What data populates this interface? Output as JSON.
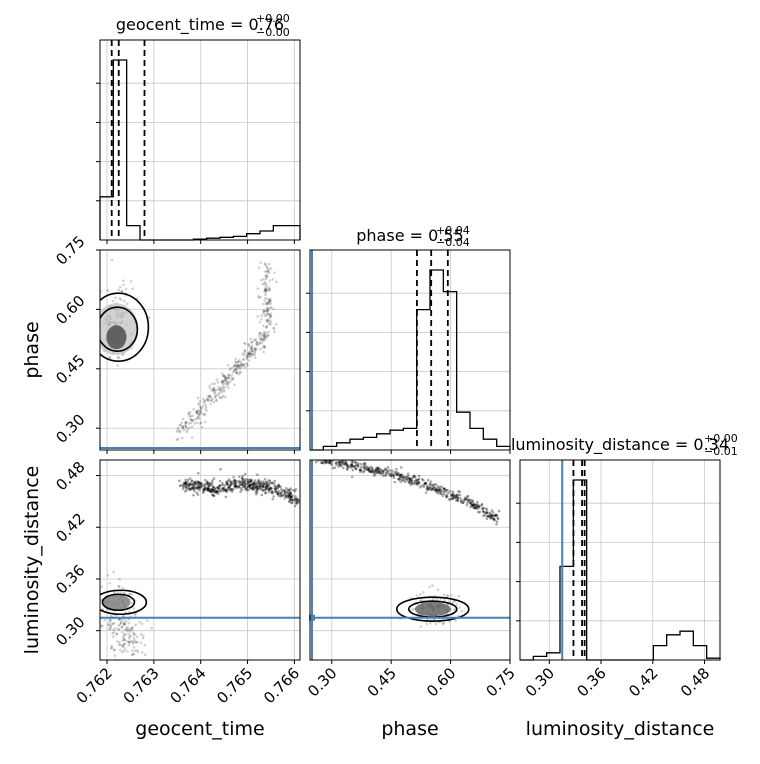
{
  "chart_data": {
    "type": "corner",
    "parameters": [
      {
        "key": "geocent_time",
        "label": "geocent_time",
        "title_name": "geocent_time",
        "title_value": "0.76",
        "title_plus": "+0.00",
        "title_minus": "−0.00",
        "range": [
          0.76185,
          0.76612
        ],
        "ticks": [
          0.762,
          0.763,
          0.764,
          0.765,
          0.766
        ],
        "tick_labels": [
          "0.762",
          "0.763",
          "0.764",
          "0.765",
          "0.766"
        ],
        "quantiles": [
          0.7621,
          0.76225,
          0.7628
        ],
        "histogram": [
          0.24,
          1.0,
          0.08,
          0,
          0,
          0,
          0,
          0.005,
          0.01,
          0.015,
          0.02,
          0.035,
          0.05,
          0.08,
          0.08
        ],
        "truth": null
      },
      {
        "key": "phase",
        "label": "phase",
        "title_name": "phase",
        "title_value": "0.55",
        "title_plus": "+0.04",
        "title_minus": "−0.04",
        "range": [
          0.245,
          0.75
        ],
        "ticks": [
          0.3,
          0.45,
          0.6,
          0.75
        ],
        "tick_labels": [
          "0.30",
          "0.45",
          "0.60",
          "0.75"
        ],
        "quantiles": [
          0.515,
          0.551,
          0.593
        ],
        "histogram": [
          0.0,
          0.02,
          0.04,
          0.06,
          0.07,
          0.09,
          0.11,
          0.12,
          0.78,
          1.0,
          0.88,
          0.21,
          0.12,
          0.06,
          0.02
        ],
        "truth": 0.25
      },
      {
        "key": "luminosity_distance",
        "label": "luminosity_distance",
        "title_name": "luminosity_distance",
        "title_value": "0.34",
        "title_plus": "+0.00",
        "title_minus": "−0.01",
        "range": [
          0.266,
          0.498
        ],
        "ticks": [
          0.3,
          0.36,
          0.42,
          0.48
        ],
        "tick_labels": [
          "0.30",
          "0.36",
          "0.42",
          "0.48"
        ],
        "quantiles": [
          0.328,
          0.338,
          0.341
        ],
        "histogram": [
          0.0,
          0.02,
          0.04,
          0.52,
          1.0,
          0.0,
          0.0,
          0.0,
          0.0,
          0.0,
          0.08,
          0.14,
          0.16,
          0.08,
          0.01
        ],
        "truth": 0.315
      }
    ],
    "truth_color": "#4682b4",
    "grid": true
  }
}
